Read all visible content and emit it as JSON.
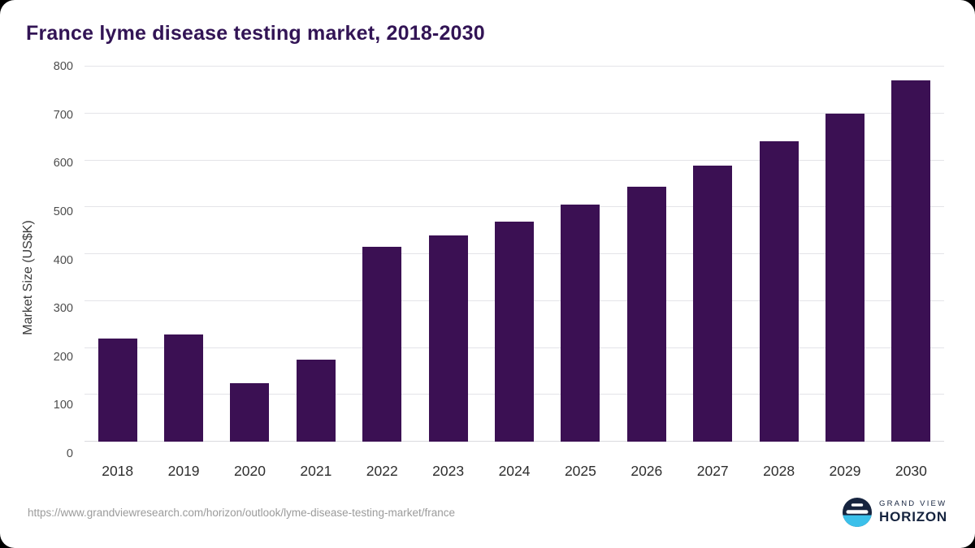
{
  "title": "France lyme disease testing market, 2018-2030",
  "source_url": "https://www.grandviewresearch.com/horizon/outlook/lyme-disease-testing-market/france",
  "logo": {
    "line1": "GRAND VIEW",
    "line2": "HORIZON"
  },
  "colors": {
    "bar": "#3b1053",
    "title": "#321455",
    "grid": "#e4e4e8",
    "tick_text": "#4d4d4d",
    "logo_navy": "#16243f",
    "logo_cyan": "#3bc0ea"
  },
  "chart_data": {
    "type": "bar",
    "title": "France lyme disease testing market, 2018-2030",
    "categories": [
      "2018",
      "2019",
      "2020",
      "2021",
      "2022",
      "2023",
      "2024",
      "2025",
      "2026",
      "2027",
      "2028",
      "2029",
      "2030"
    ],
    "values": [
      220,
      228,
      125,
      175,
      415,
      440,
      470,
      505,
      543,
      588,
      640,
      700,
      770
    ],
    "xlabel": "",
    "ylabel": "Market Size (US$K)",
    "ylim": [
      0,
      800
    ],
    "yticks": [
      0,
      100,
      200,
      300,
      400,
      500,
      600,
      700,
      800
    ],
    "grid": true,
    "legend": false,
    "bar_color": "#3b1053"
  }
}
